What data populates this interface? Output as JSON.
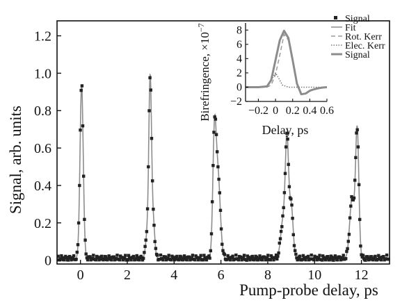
{
  "chart_data": [
    {
      "type": "scatter",
      "xlabel": "Pump-probe delay, ps",
      "ylabel": "Signal, arb. units",
      "xlim": [
        -1,
        13.2
      ],
      "ylim": [
        -0.02,
        1.28
      ],
      "xticks": [
        0,
        2,
        4,
        6,
        8,
        10,
        12
      ],
      "xtick_labels": [
        "0",
        "2",
        "4",
        "6",
        "8",
        "10",
        "12"
      ],
      "yticks": [
        0,
        0.2,
        0.4,
        0.6,
        0.8,
        1.0,
        1.2
      ],
      "ytick_labels": [
        "0",
        "0.2",
        "0.4",
        "0.6",
        "0.8",
        "1.0",
        "1.2"
      ],
      "peaks": [
        {
          "center": 0.05,
          "width": 0.07,
          "amp": 0.93
        },
        {
          "center": 2.85,
          "width": 0.07,
          "amp": 0.12
        },
        {
          "center": 2.98,
          "width": 0.06,
          "amp": 0.95
        },
        {
          "center": 3.12,
          "width": 0.06,
          "amp": 0.17
        },
        {
          "center": 5.72,
          "width": 0.07,
          "amp": 0.6
        },
        {
          "center": 5.87,
          "width": 0.1,
          "amp": 0.45
        },
        {
          "center": 8.65,
          "width": 0.1,
          "amp": 0.2
        },
        {
          "center": 8.82,
          "width": 0.07,
          "amp": 0.6
        },
        {
          "center": 9.0,
          "width": 0.08,
          "amp": 0.28
        },
        {
          "center": 11.6,
          "width": 0.1,
          "amp": 0.32
        },
        {
          "center": 11.82,
          "width": 0.07,
          "amp": 0.68
        }
      ],
      "baseline": 0.01,
      "legend": "none",
      "grid": false,
      "series": [
        {
          "name": "Signal",
          "style": "square-markers",
          "color": "#222222"
        },
        {
          "name": "Fit",
          "style": "solid-line",
          "color": "#8c8c8c"
        }
      ]
    },
    {
      "type": "line",
      "xlabel": "Delay, ps",
      "ylabel": "Birefringence, ×10",
      "ylabel_exponent": "−7",
      "xlim": [
        -0.35,
        0.6
      ],
      "ylim": [
        -2,
        9
      ],
      "xticks": [
        -0.2,
        0,
        0.2,
        0.4,
        0.6
      ],
      "xtick_labels": [
        "−0.2",
        "0",
        "0.2",
        "0.4",
        "0.6"
      ],
      "yticks": [
        -2,
        0,
        2,
        4,
        6,
        8
      ],
      "ytick_labels": [
        "−2",
        "0",
        "2",
        "4",
        "6",
        "8"
      ],
      "legend_position": "right",
      "grid": false,
      "series": [
        {
          "name": "Signal",
          "style": "square-marker",
          "color": "#222222"
        },
        {
          "name": "Fit",
          "style": "solid-line",
          "color": "#8c8c8c"
        },
        {
          "name": "Rot. Kerr",
          "style": "dashed",
          "color": "#9a9a9a",
          "x": [
            -0.35,
            -0.2,
            -0.1,
            -0.05,
            0,
            0.05,
            0.1,
            0.15,
            0.2,
            0.25,
            0.3,
            0.35,
            0.4,
            0.45,
            0.5,
            0.55,
            0.6
          ],
          "y": [
            0,
            0,
            0,
            0.3,
            1.8,
            4.5,
            7.4,
            6.6,
            3.8,
            0.5,
            -1.0,
            -0.9,
            -0.5,
            -0.3,
            -0.15,
            -0.05,
            0
          ]
        },
        {
          "name": "Elec. Kerr",
          "style": "dotted",
          "color": "#777777",
          "x": [
            -0.35,
            -0.15,
            -0.08,
            -0.04,
            0,
            0.04,
            0.08,
            0.15,
            0.3,
            0.6
          ],
          "y": [
            0,
            0,
            0.3,
            1.2,
            2.0,
            1.2,
            0.3,
            0,
            0,
            0
          ]
        },
        {
          "name": "Signal",
          "style": "thick-solid",
          "color": "#8c8c8c",
          "x": [
            -0.35,
            -0.2,
            -0.1,
            -0.05,
            0,
            0.05,
            0.1,
            0.15,
            0.2,
            0.25,
            0.3,
            0.35,
            0.4,
            0.45,
            0.5,
            0.55,
            0.6
          ],
          "y": [
            0,
            0,
            0.1,
            1.0,
            3.8,
            6.6,
            7.9,
            6.9,
            3.8,
            0.5,
            -1.0,
            -0.9,
            -0.5,
            -0.3,
            -0.15,
            -0.05,
            0
          ]
        }
      ]
    }
  ]
}
